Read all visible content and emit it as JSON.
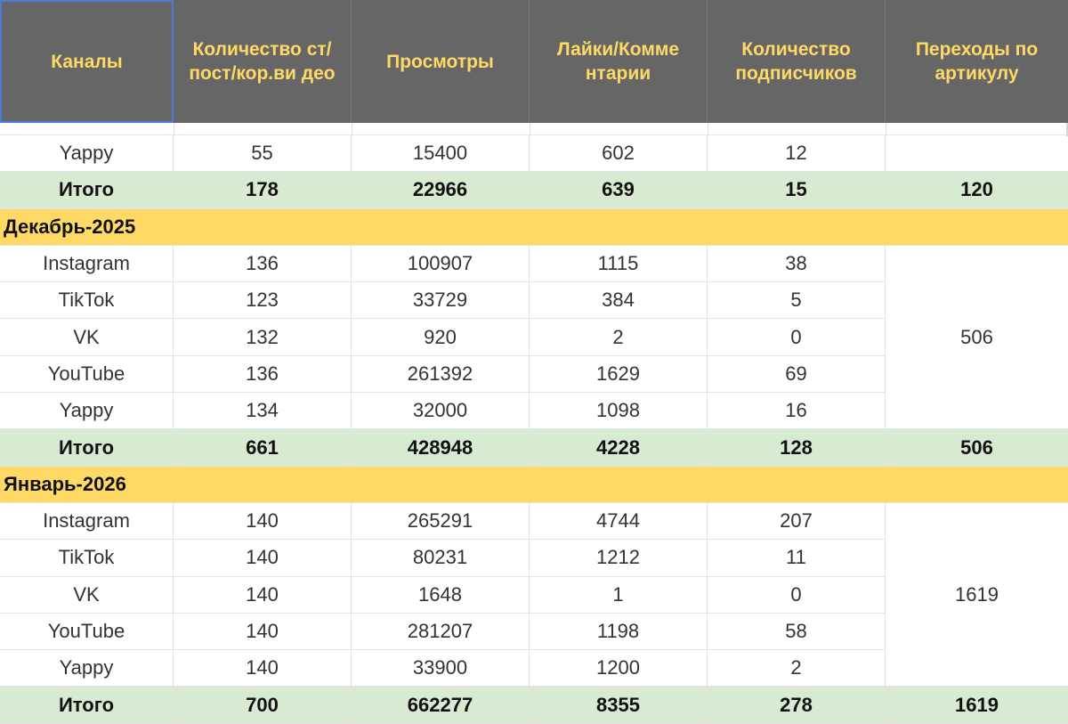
{
  "header": {
    "columns": [
      "Каналы",
      "Количество ст/пост/кор.ви део",
      "Просмотры",
      "Лайки/Комме нтарии",
      "Количество подписчиков",
      "Переходы по артикулу"
    ]
  },
  "sections": {
    "prev": {
      "rows": [
        {
          "channel": "Yappy",
          "posts": "55",
          "views": "15400",
          "likes": "602",
          "subs": "12"
        }
      ],
      "total": {
        "label": "Итого",
        "posts": "178",
        "views": "22966",
        "likes": "639",
        "subs": "15",
        "clicks": "120"
      }
    },
    "dec": {
      "title": "Декабрь-2025",
      "rows": [
        {
          "channel": "Instagram",
          "posts": "136",
          "views": "100907",
          "likes": "1115",
          "subs": "38"
        },
        {
          "channel": "TikTok",
          "posts": "123",
          "views": "33729",
          "likes": "384",
          "subs": "5"
        },
        {
          "channel": "VK",
          "posts": "132",
          "views": "920",
          "likes": "2",
          "subs": "0"
        },
        {
          "channel": "YouTube",
          "posts": "136",
          "views": "261392",
          "likes": "1629",
          "subs": "69"
        },
        {
          "channel": "Yappy",
          "posts": "134",
          "views": "32000",
          "likes": "1098",
          "subs": "16"
        }
      ],
      "clicks": "506",
      "total": {
        "label": "Итого",
        "posts": "661",
        "views": "428948",
        "likes": "4228",
        "subs": "128",
        "clicks": "506"
      }
    },
    "jan": {
      "title": "Январь-2026",
      "rows": [
        {
          "channel": "Instagram",
          "posts": "140",
          "views": "265291",
          "likes": "4744",
          "subs": "207"
        },
        {
          "channel": "TikTok",
          "posts": "140",
          "views": "80231",
          "likes": "1212",
          "subs": "11"
        },
        {
          "channel": "VK",
          "posts": "140",
          "views": "1648",
          "likes": "1",
          "subs": "0"
        },
        {
          "channel": "YouTube",
          "posts": "140",
          "views": "281207",
          "likes": "1198",
          "subs": "58"
        },
        {
          "channel": "Yappy",
          "posts": "140",
          "views": "33900",
          "likes": "1200",
          "subs": "2"
        }
      ],
      "clicks": "1619",
      "total": {
        "label": "Итого",
        "posts": "700",
        "views": "662277",
        "likes": "8355",
        "subs": "278",
        "clicks": "1619"
      }
    }
  },
  "colors": {
    "header_bg": "#666666",
    "header_text": "#ffd966",
    "month_bg": "#ffd966",
    "total_bg": "#d9ead3",
    "selection": "#4a7bd6"
  }
}
